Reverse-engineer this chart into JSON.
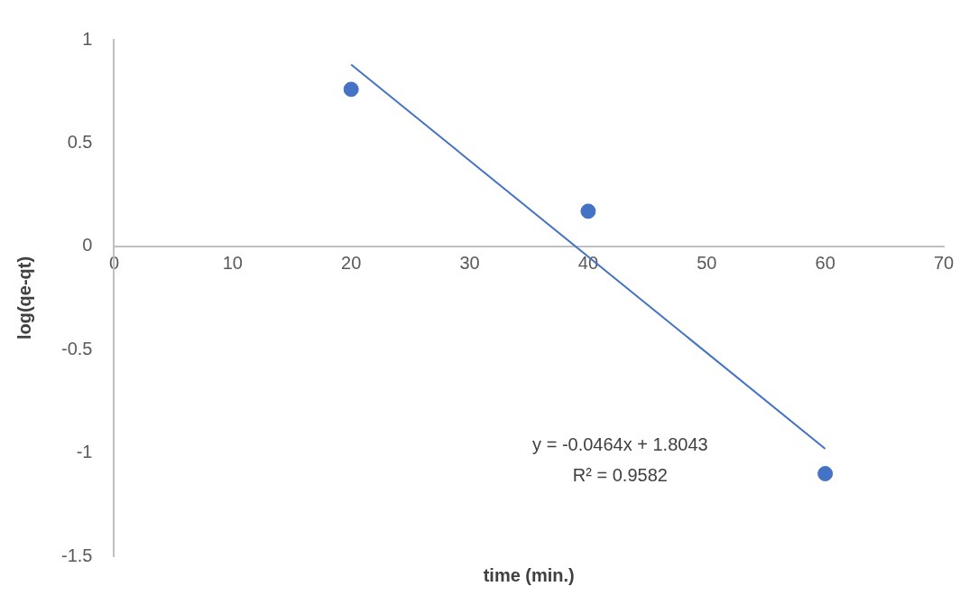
{
  "chart_data": {
    "type": "scatter",
    "xlabel": "time (min.)",
    "ylabel": "log(qe-qt)",
    "series": [
      {
        "type": "scatter",
        "color": "#4472c4",
        "x": [
          20,
          40,
          60
        ],
        "values": [
          0.76,
          0.17,
          -1.1
        ],
        "marker": "circle"
      },
      {
        "type": "line",
        "color": "#4472c4",
        "x": [
          20,
          60
        ],
        "values": [
          0.88,
          -0.98
        ],
        "marker": "none",
        "line_style": "solid"
      }
    ],
    "xlim": [
      0,
      70
    ],
    "xticks": [
      0,
      10,
      20,
      30,
      40,
      50,
      60,
      70
    ],
    "ylim": [
      -1.5,
      1
    ],
    "yticks": [
      -1.5,
      -1,
      -0.5,
      0,
      0.5,
      1
    ],
    "grid": false,
    "legend": false,
    "annotations": [
      "y = -0.0464x + 1.8043",
      "R² = 0.9582"
    ]
  }
}
